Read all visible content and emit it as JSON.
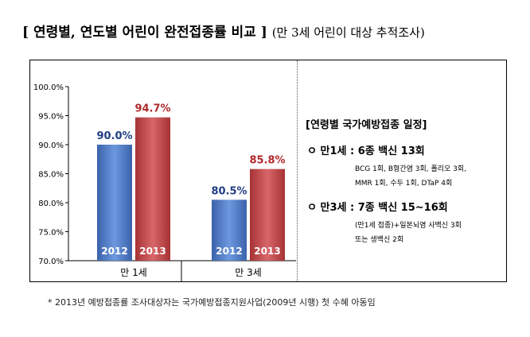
{
  "header": {
    "title": "[ 연령별, 연도별 어린이 완전접종률 비교 ]",
    "subtitle": "(만 3세 어린이 대상 추적조사)"
  },
  "chart_data": {
    "type": "bar",
    "categories": [
      "만 1세",
      "만 3세"
    ],
    "series": [
      {
        "name": "2012",
        "values": [
          90.0,
          80.5
        ]
      },
      {
        "name": "2013",
        "values": [
          94.7,
          85.8
        ]
      }
    ],
    "value_labels": [
      [
        "90.0%",
        "80.5%"
      ],
      [
        "94.7%",
        "85.8%"
      ]
    ],
    "ylim": [
      70,
      100
    ],
    "yticks": [
      70,
      75,
      80,
      85,
      90,
      95,
      100
    ],
    "ytick_labels": [
      "70.0%",
      "75.0%",
      "80.0%",
      "85.0%",
      "90.0%",
      "95.0%",
      "100.0%"
    ],
    "colors": {
      "2012": "#4a78c6",
      "2013": "#c0484a"
    },
    "grid": false,
    "legend": "in-bar labels"
  },
  "schedule": {
    "title": "[연령별 국가예방접종 일정]",
    "age1": {
      "label": "ㅇ 만1세 : 6종 백신 13회",
      "line1": "BCG 1회, B형간염 3회, 폴리오 3회,",
      "line2": "MMR 1회, 수두 1회,   DTaP 4회"
    },
    "age3": {
      "label": "ㅇ 만3세 : 7종 백신 15~16회",
      "line1": "(만1세 접종)+일본뇌염 사백신 3회",
      "line2": "또는 생백신 2회"
    }
  },
  "footnote": "* 2013년 예방접종률 조사대상자는 국가예방접종지원사업(2009년 시행) 첫 수혜 아동임"
}
